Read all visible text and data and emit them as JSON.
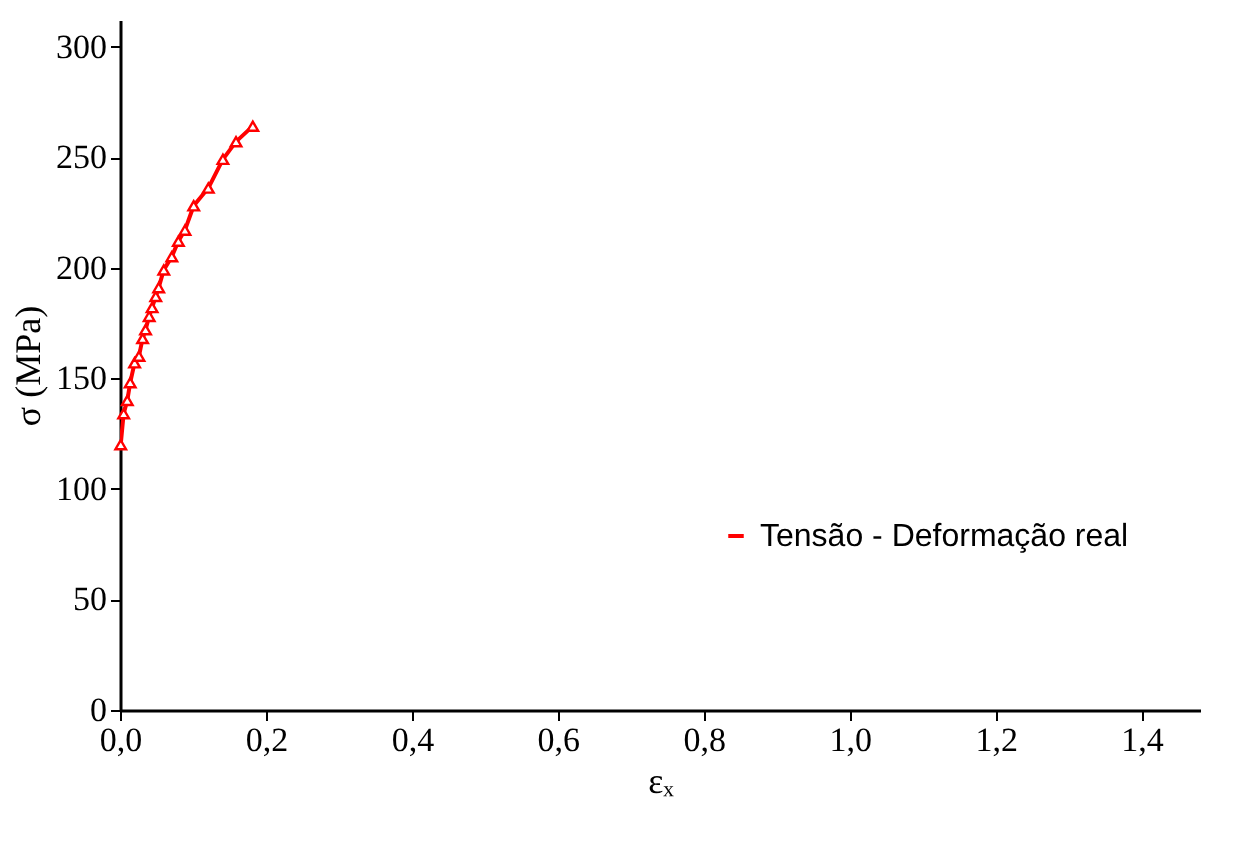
{
  "chart_data": {
    "type": "line",
    "xlabel": "εₓ",
    "ylabel": "σ (MPa)",
    "x": [
      0.001,
      0.005,
      0.01,
      0.014,
      0.02,
      0.026,
      0.031,
      0.035,
      0.04,
      0.044,
      0.049,
      0.053,
      0.06,
      0.071,
      0.08,
      0.089,
      0.101,
      0.121,
      0.141,
      0.159,
      0.182
    ],
    "series": [
      {
        "name": "Tensão - Deformação real",
        "color": "#ff0000",
        "values": [
          120,
          134,
          140,
          148,
          157,
          160,
          168,
          172,
          178,
          182,
          187,
          191,
          199,
          205,
          212,
          217,
          228,
          236,
          249,
          257,
          264
        ]
      }
    ],
    "xlim": [
      0,
      1.48
    ],
    "ylim": [
      0,
      312
    ],
    "xticks": [
      {
        "value": 0,
        "label": "0,0"
      },
      {
        "value": 0.2,
        "label": "0,2"
      },
      {
        "value": 0.4,
        "label": "0,4"
      },
      {
        "value": 0.6,
        "label": "0,6"
      },
      {
        "value": 0.8,
        "label": "0,8"
      },
      {
        "value": 1.0,
        "label": "1,0"
      },
      {
        "value": 1.2,
        "label": "1,2"
      },
      {
        "value": 1.4,
        "label": "1,4"
      }
    ],
    "yticks": [
      0,
      50,
      100,
      150,
      200,
      250,
      300
    ],
    "grid": false,
    "legend": "right",
    "marker": "triangle",
    "line_style": "solid"
  }
}
